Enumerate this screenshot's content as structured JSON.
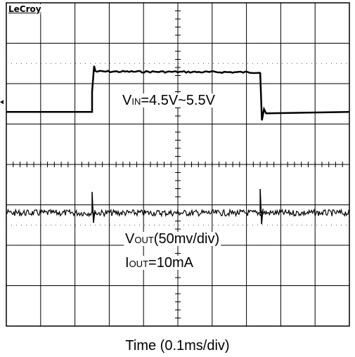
{
  "brand": "LeCroy",
  "chart_data": {
    "type": "line",
    "xlabel": "Time (0.1ms/div)",
    "grid": true,
    "divisions": {
      "x": 10,
      "y": 8
    },
    "x_range_div": [
      0,
      10
    ],
    "y_range_div": [
      -4,
      4
    ],
    "series": [
      {
        "channel": "upper",
        "x": [
          0,
          2.5,
          2.5,
          2.6,
          7.4,
          7.45,
          10
        ],
        "y": [
          1.3,
          1.3,
          1.8,
          2.3,
          2.28,
          1.3,
          1.3
        ]
      },
      {
        "channel": "lower",
        "x": [
          0,
          2.5,
          7.4,
          10
        ],
        "y": [
          -1.2,
          -1.2,
          -1.2,
          -1.2
        ]
      }
    ],
    "annotations": {
      "vin": {
        "main": "V",
        "sub": "IN",
        "rest": "=4.5V~5.5V"
      },
      "vout": {
        "main": "V",
        "sub": "OUT",
        "rest": "(50mv/div)"
      },
      "iout": {
        "main": "I",
        "sub": "OUT",
        "rest": "=10mA"
      }
    }
  }
}
